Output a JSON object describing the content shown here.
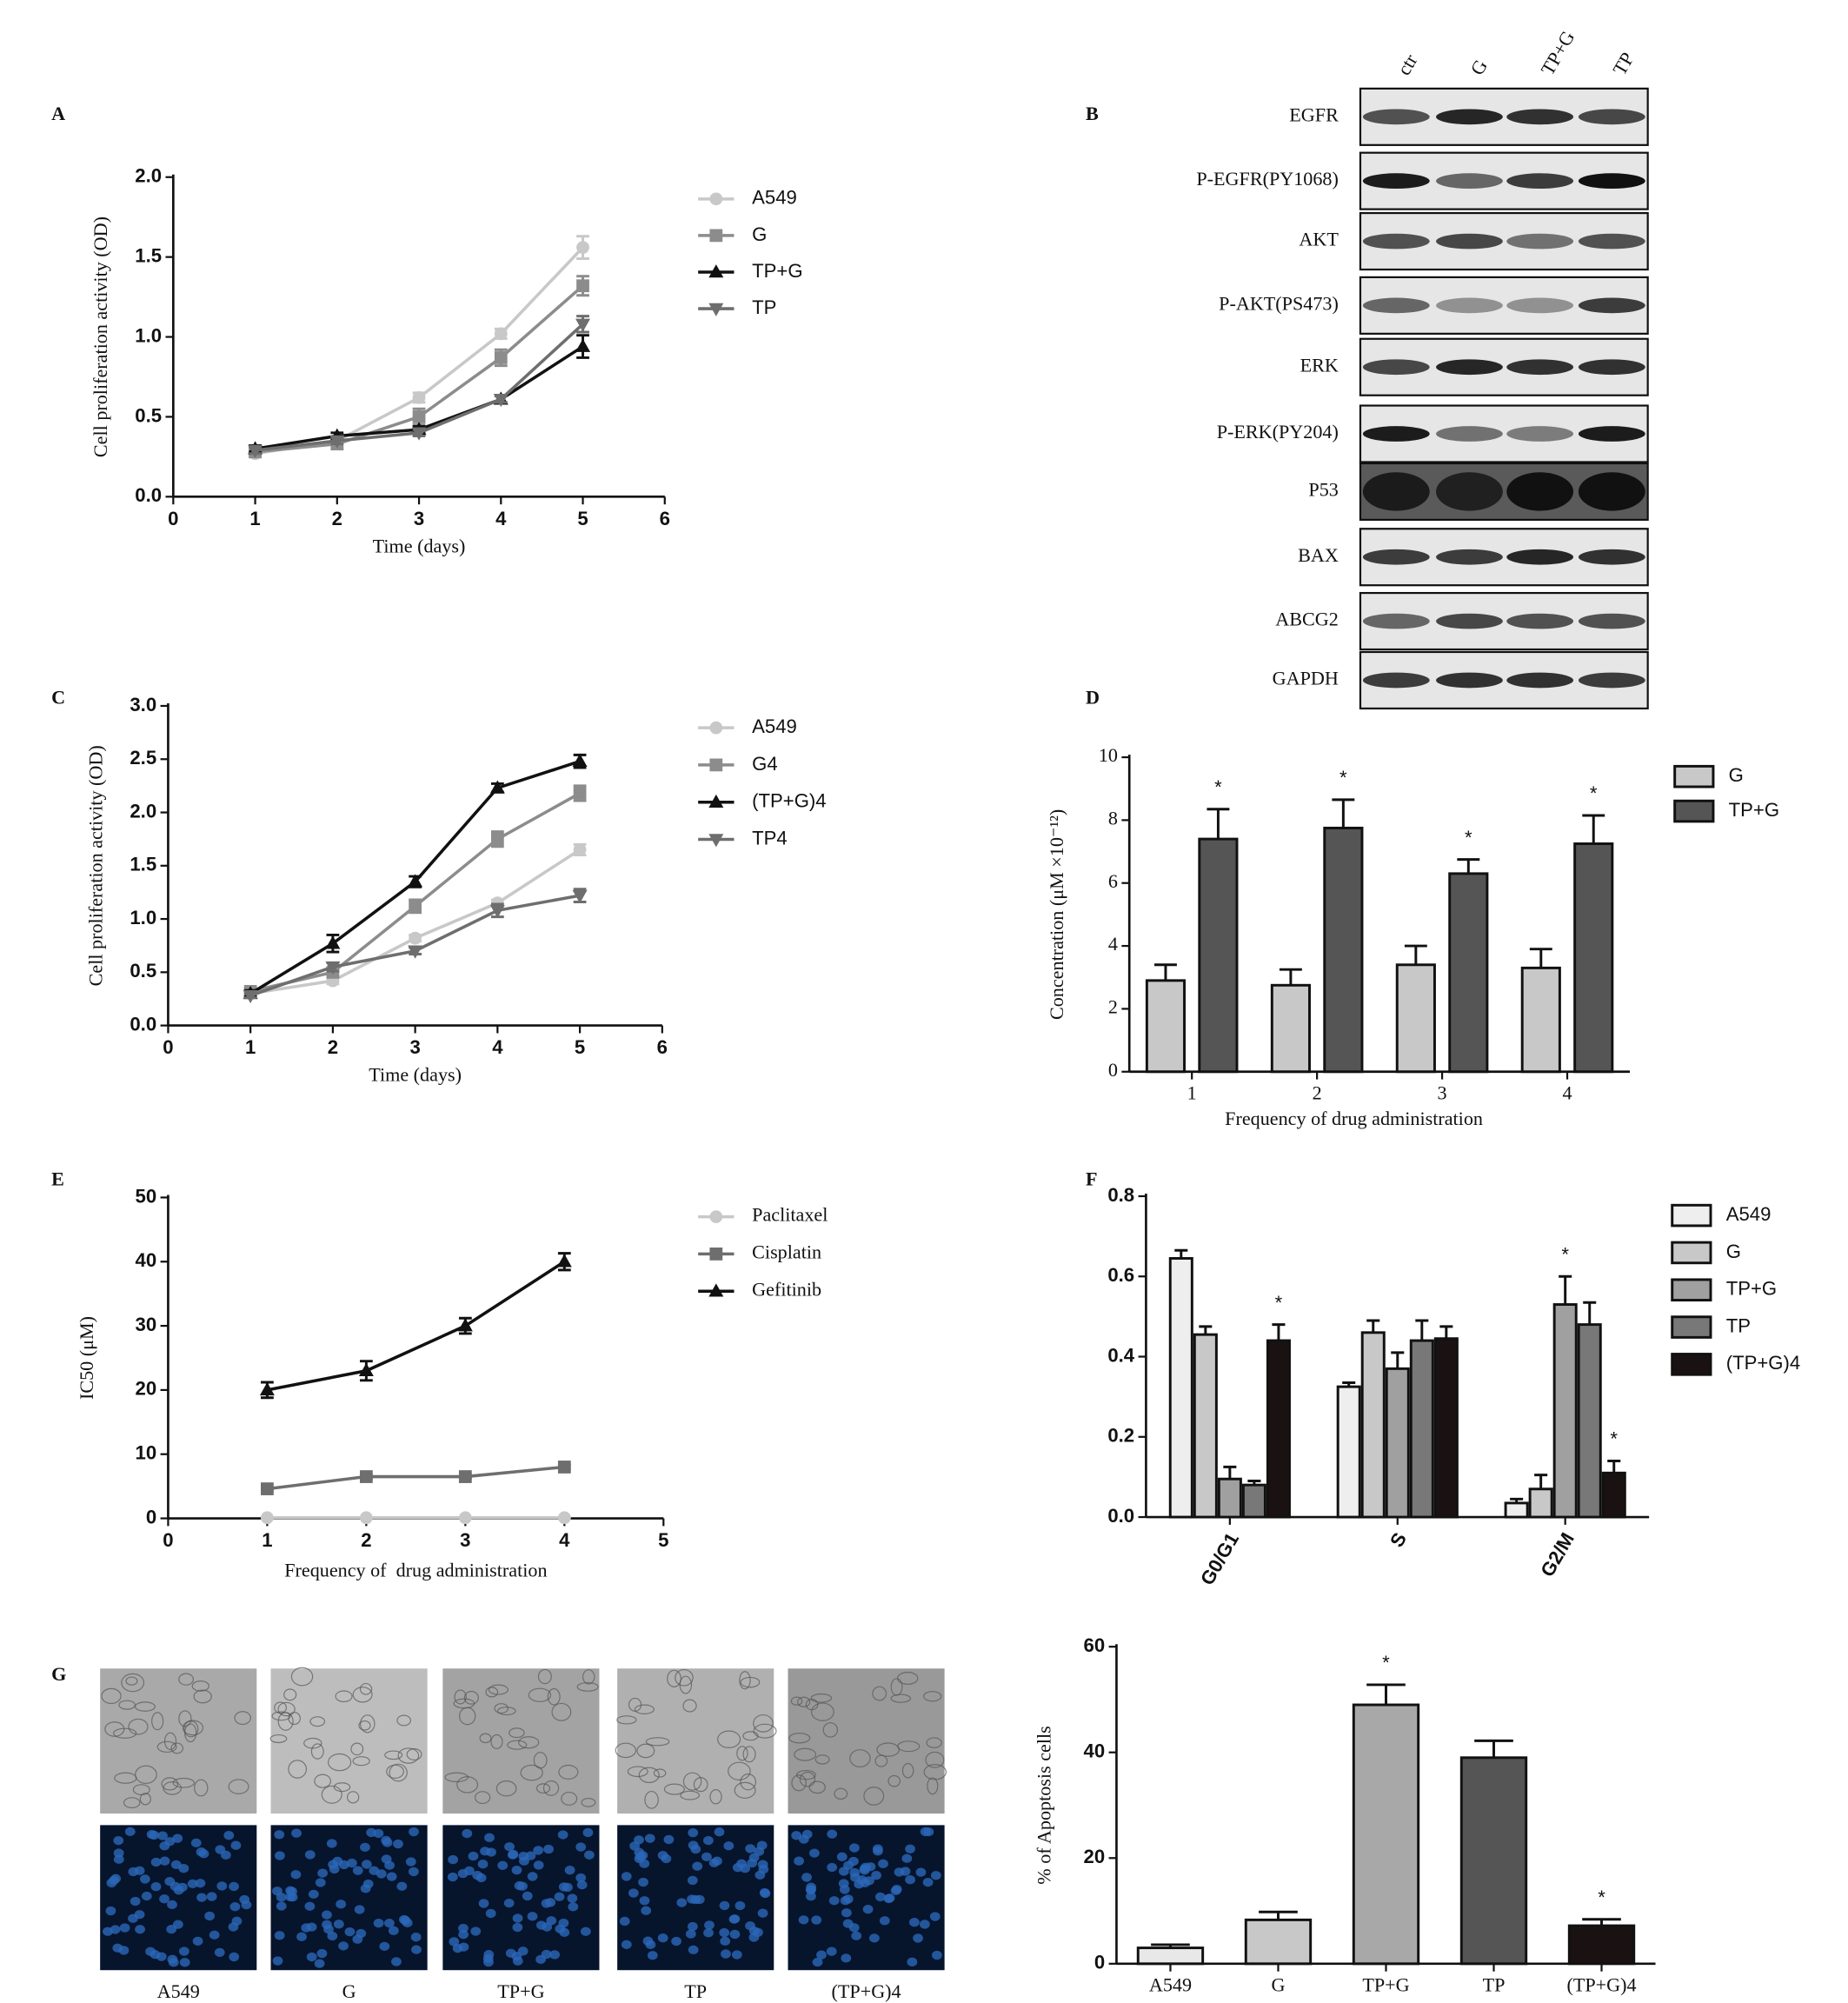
{
  "panel_labels": [
    "A",
    "B",
    "C",
    "D",
    "E",
    "F",
    "G"
  ],
  "western_blot": {
    "lanes": [
      "ctr",
      "G",
      "TP+G",
      "TP"
    ],
    "proteins": [
      "EGFR",
      "P-EGFR(PY1068)",
      "AKT",
      "P-AKT(PS473)",
      "ERK",
      "P-ERK(PY204)",
      "P53",
      "BAX",
      "ABCG2",
      "GAPDH"
    ]
  },
  "micrographs": {
    "labels": [
      "A549",
      "G",
      "TP+G",
      "TP",
      "(TP+G)4"
    ]
  },
  "chart_data": [
    {
      "type": "line",
      "x_label": "Time (days)",
      "y_label": "Cell proliferation activity (OD)",
      "x": [
        1,
        2,
        3,
        4,
        5
      ],
      "xlim": [
        0,
        6
      ],
      "xticks": [
        0,
        1,
        2,
        3,
        4,
        5,
        6
      ],
      "ylim": [
        0,
        2
      ],
      "yticks": [
        {
          "value": 0,
          "label": "0.0"
        },
        0.5,
        {
          "value": 1,
          "label": "1.0"
        },
        1.5,
        {
          "value": 2,
          "label": "2.0"
        }
      ],
      "series": [
        {
          "name": "A549",
          "color": "#c8c8c8",
          "marker": "circle",
          "values": [
            0.27,
            0.35,
            0.62,
            1.02,
            1.56
          ],
          "errors": [
            0.02,
            0.02,
            0.03,
            0.03,
            0.07
          ]
        },
        {
          "name": "G",
          "color": "#8c8c8c",
          "marker": "square",
          "values": [
            0.28,
            0.33,
            0.5,
            0.87,
            1.32
          ],
          "errors": [
            0.02,
            0.03,
            0.05,
            0.05,
            0.06
          ]
        },
        {
          "name": "TP+G",
          "color": "#111111",
          "marker": "triangle",
          "values": [
            0.3,
            0.38,
            0.42,
            0.61,
            0.94
          ],
          "errors": [
            0.02,
            0.02,
            0.02,
            0.02,
            0.07
          ]
        },
        {
          "name": "TP",
          "color": "#6e6e6e",
          "marker": "triangle-down",
          "values": [
            0.29,
            0.35,
            0.4,
            0.61,
            1.08
          ],
          "errors": [
            0.02,
            0.02,
            0.02,
            0.02,
            0.05
          ]
        }
      ]
    },
    {
      "type": "line",
      "x_label": "Time (days)",
      "y_label": "Cell proliferation activity (OD)",
      "x": [
        1,
        2,
        3,
        4,
        5
      ],
      "xlim": [
        0,
        6
      ],
      "xticks": [
        0,
        1,
        2,
        3,
        4,
        5,
        6
      ],
      "ylim": [
        0,
        3
      ],
      "yticks": [
        {
          "value": 0,
          "label": "0.0"
        },
        0.5,
        {
          "value": 1,
          "label": "1.0"
        },
        1.5,
        {
          "value": 2,
          "label": "2.0"
        },
        2.5,
        {
          "value": 3,
          "label": "3.0"
        }
      ],
      "series": [
        {
          "name": "A549",
          "color": "#c8c8c8",
          "marker": "circle",
          "values": [
            0.3,
            0.42,
            0.82,
            1.15,
            1.65
          ],
          "errors": [
            0.03,
            0.03,
            0.03,
            0.03,
            0.05
          ]
        },
        {
          "name": "G4",
          "color": "#8c8c8c",
          "marker": "square",
          "values": [
            0.32,
            0.5,
            1.12,
            1.75,
            2.18
          ],
          "errors": [
            0.03,
            0.04,
            0.06,
            0.07,
            0.07
          ]
        },
        {
          "name": "(TP+G)4",
          "color": "#111111",
          "marker": "triangle",
          "values": [
            0.3,
            0.77,
            1.35,
            2.23,
            2.48
          ],
          "errors": [
            0.03,
            0.08,
            0.05,
            0.04,
            0.06
          ]
        },
        {
          "name": "TP4",
          "color": "#6e6e6e",
          "marker": "triangle-down",
          "values": [
            0.28,
            0.55,
            0.7,
            1.08,
            1.22
          ],
          "errors": [
            0.02,
            0.04,
            0.03,
            0.06,
            0.06
          ]
        }
      ]
    },
    {
      "type": "line",
      "x_label": "Frequency of  drug administration",
      "y_label": "IC50 (μM)",
      "x": [
        1,
        2,
        3,
        4
      ],
      "xlim": [
        0,
        5
      ],
      "xticks": [
        0,
        1,
        2,
        3,
        4,
        5
      ],
      "ylim": [
        0,
        50
      ],
      "yticks": [
        0,
        10,
        20,
        30,
        40,
        50
      ],
      "series": [
        {
          "name": "Paclitaxel",
          "color": "#c8c8c8",
          "marker": "circle",
          "values": [
            0.1,
            0.1,
            0.1,
            0.1
          ],
          "errors": [
            0,
            0,
            0,
            0
          ]
        },
        {
          "name": "Cisplatin",
          "color": "#6e6e6e",
          "marker": "square",
          "values": [
            4.6,
            6.5,
            6.5,
            8
          ],
          "errors": [
            0.3,
            0.3,
            0.3,
            0.3
          ]
        },
        {
          "name": "Gefitinib",
          "color": "#111111",
          "marker": "triangle",
          "values": [
            20,
            23,
            30,
            40
          ],
          "errors": [
            1.2,
            1.5,
            1.2,
            1.3
          ]
        }
      ]
    },
    {
      "type": "bar",
      "x_label": "Frequency of drug administration",
      "y_label": "Concentration (μM ×10⁻¹²)",
      "categories": [
        "1",
        "2",
        "3",
        "4"
      ],
      "ylim": [
        0,
        10
      ],
      "yticks": [
        0,
        2,
        4,
        6,
        8,
        10
      ],
      "series": [
        {
          "name": "G",
          "color": "#c8c8c8",
          "values": [
            2.9,
            2.75,
            3.4,
            3.3
          ],
          "errors": [
            0.5,
            0.5,
            0.6,
            0.6
          ],
          "annotations": [
            null,
            null,
            null,
            null
          ]
        },
        {
          "name": "TP+G",
          "color": "#555555",
          "values": [
            7.4,
            7.75,
            6.3,
            7.25
          ],
          "errors": [
            0.95,
            0.9,
            0.45,
            0.9
          ],
          "annotations": [
            "*",
            "*",
            "*",
            "*"
          ]
        }
      ]
    },
    {
      "type": "bar",
      "categories": [
        "G0/G1",
        "S",
        "G2/M"
      ],
      "ylim": [
        0,
        0.8
      ],
      "yticks": [
        {
          "value": 0,
          "label": "0.0"
        },
        0.2,
        0.4,
        0.6,
        0.8
      ],
      "series": [
        {
          "name": "A549",
          "color": "#eeeeee",
          "values": [
            0.645,
            0.325,
            0.035
          ],
          "errors": [
            0.02,
            0.01,
            0.01
          ],
          "annotations": [
            null,
            null,
            null
          ]
        },
        {
          "name": "G",
          "color": "#c8c8c8",
          "values": [
            0.455,
            0.46,
            0.07
          ],
          "errors": [
            0.02,
            0.03,
            0.035
          ],
          "annotations": [
            null,
            null,
            null
          ]
        },
        {
          "name": "TP+G",
          "color": "#a0a0a0",
          "values": [
            0.095,
            0.37,
            0.53
          ],
          "errors": [
            0.03,
            0.04,
            0.07
          ],
          "annotations": [
            null,
            null,
            "*"
          ]
        },
        {
          "name": "TP",
          "color": "#787878",
          "values": [
            0.08,
            0.44,
            0.48
          ],
          "errors": [
            0.01,
            0.05,
            0.055
          ],
          "annotations": [
            null,
            null,
            null
          ]
        },
        {
          "name": "(TP+G)4",
          "color": "#1a1212",
          "values": [
            0.44,
            0.445,
            0.11
          ],
          "errors": [
            0.04,
            0.03,
            0.03
          ],
          "annotations": [
            "*",
            null,
            "*"
          ]
        }
      ]
    },
    {
      "type": "bar",
      "y_label": "% of Apoptosis cells",
      "categories": [
        "A549",
        "G",
        "TP+G",
        "TP",
        "(TP+G)4"
      ],
      "ylim": [
        0,
        60
      ],
      "yticks": [
        0,
        20,
        40,
        60
      ],
      "values": [
        3,
        8.3,
        49,
        39,
        7.2
      ],
      "errors": [
        0.6,
        1.5,
        3.8,
        3.2,
        1.2
      ],
      "colors": [
        "#e8e8e8",
        "#c8c8c8",
        "#a8a8a8",
        "#555555",
        "#1a1212"
      ],
      "annotations": [
        null,
        null,
        "*",
        null,
        "*"
      ]
    }
  ]
}
